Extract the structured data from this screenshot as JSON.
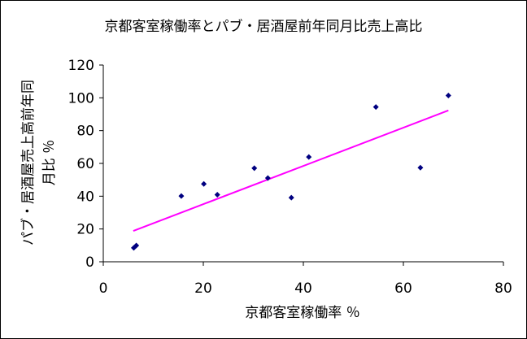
{
  "chart_data": {
    "type": "scatter",
    "title": "京都客室稼働率とパブ・居酒屋前年同月比売上高比",
    "xlabel": "京都客室稼働率 ％",
    "ylabel_lines": [
      "パブ・居酒屋売上高前年同",
      "月比 ％"
    ],
    "xlim": [
      0,
      80
    ],
    "ylim": [
      0,
      120
    ],
    "xticks": [
      "0",
      "20",
      "40",
      "60",
      "80"
    ],
    "yticks": [
      "0",
      "20",
      "40",
      "60",
      "80",
      "100",
      "120"
    ],
    "grid": false,
    "legend": "none",
    "points": [
      {
        "x": 6.1,
        "y": 8.5
      },
      {
        "x": 6.6,
        "y": 9.9
      },
      {
        "x": 15.6,
        "y": 40.1
      },
      {
        "x": 20.1,
        "y": 47.5
      },
      {
        "x": 22.8,
        "y": 40.9
      },
      {
        "x": 30.2,
        "y": 57.1
      },
      {
        "x": 32.9,
        "y": 51.1
      },
      {
        "x": 37.6,
        "y": 39.1
      },
      {
        "x": 41.1,
        "y": 63.9
      },
      {
        "x": 54.5,
        "y": 94.4
      },
      {
        "x": 63.4,
        "y": 57.4
      },
      {
        "x": 69.0,
        "y": 101.4
      }
    ],
    "trendline": {
      "x": [
        6.0,
        69.0
      ],
      "y": [
        18.8,
        92.3
      ],
      "color": "#ff00ff"
    },
    "marker_color": "#000080"
  }
}
